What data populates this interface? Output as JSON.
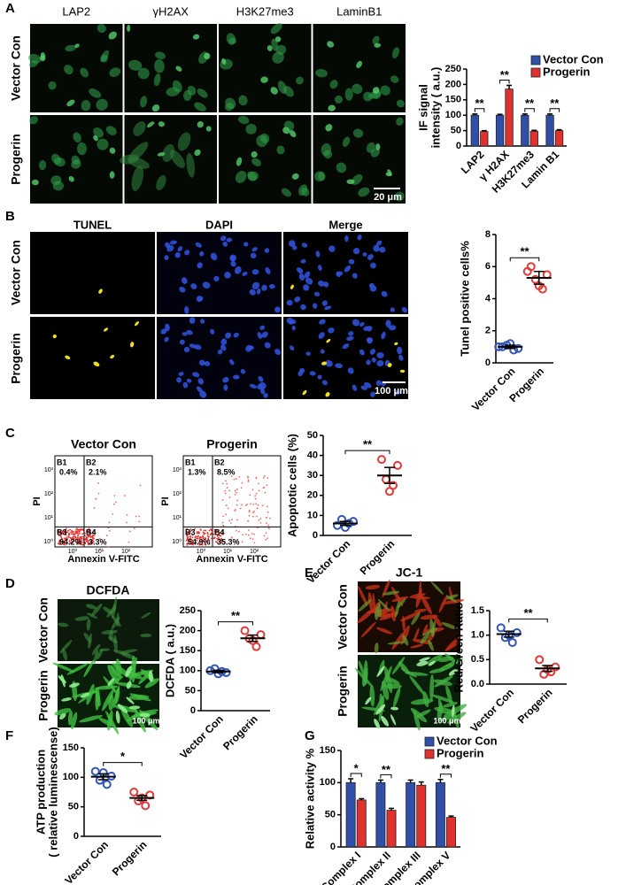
{
  "panels": {
    "A": {
      "letter": "A",
      "columns": [
        "LAP2",
        "γH2AX",
        "H3K27me3",
        "LaminB1"
      ],
      "rows": [
        "Vector Con",
        "Progerin"
      ],
      "scale_bar": "20 μm"
    },
    "B": {
      "letter": "B",
      "columns": [
        "TUNEL",
        "DAPI",
        "Merge"
      ],
      "rows": [
        "Vector Con",
        "Progerin"
      ],
      "scale_bar": "100 μm"
    },
    "C": {
      "letter": "C",
      "plots": [
        {
          "title": "Vector Con",
          "quadrants": [
            "B1",
            "B2",
            "B3",
            "B4"
          ],
          "percents": [
            "0.4%",
            "2.1%",
            "94.2%",
            "3.3%"
          ]
        },
        {
          "title": "Progerin",
          "quadrants": [
            "B1",
            "B2",
            "B3",
            "B4"
          ],
          "percents": [
            "1.3%",
            "8.5%",
            "54.9%",
            "35.3%"
          ]
        }
      ],
      "x_label": "Annexin V-FITC",
      "y_label": "PI",
      "x_ticks": [
        "10⁰",
        "10¹",
        "10²"
      ],
      "y_ticks": [
        "10⁰",
        "10¹",
        "10²",
        "10³"
      ]
    },
    "D": {
      "letter": "D",
      "title": "DCFDA",
      "rows": [
        "Vector Con",
        "Progerin"
      ],
      "scale_bar": "100 μm"
    },
    "E": {
      "letter": "E",
      "title": "JC-1",
      "rows": [
        "Vector Con",
        "Progerin"
      ],
      "scale_bar": "100 μm"
    },
    "F": {
      "letter": "F"
    },
    "G": {
      "letter": "G"
    }
  },
  "chart_data": [
    {
      "type": "bar",
      "ylabel": [
        "IF signal",
        "intensity ( a.u.)"
      ],
      "categories": [
        "LAP2",
        "γ H2AX",
        "H3K27me3",
        "Lamin B1"
      ],
      "series": [
        {
          "name": "Vector Con",
          "color": "#2f4fa8",
          "values": [
            100,
            100,
            100,
            100
          ],
          "errors": [
            4,
            3,
            4,
            4
          ]
        },
        {
          "name": "Progerin",
          "color": "#e0312f",
          "values": [
            47,
            185,
            48,
            50
          ],
          "errors": [
            3,
            12,
            3,
            3
          ]
        }
      ],
      "significance": [
        "**",
        "**",
        "**",
        "**"
      ],
      "ylim": [
        0,
        250
      ],
      "yticks": [
        0,
        50,
        100,
        150,
        200,
        250
      ],
      "legend": "upper right"
    },
    {
      "type": "dotplot",
      "ylabel": "Tunel positive cells%",
      "categories": [
        "Vector Con",
        "Progerin"
      ],
      "colors": [
        "#3355b5",
        "#e0393b"
      ],
      "values": [
        [
          1.0,
          0.9,
          1.1,
          0.8,
          1.2,
          1.0
        ],
        [
          6.0,
          5.5,
          5.2,
          4.6,
          4.8,
          5.7
        ]
      ],
      "means": [
        1.0,
        5.3
      ],
      "errors": [
        0.1,
        0.4
      ],
      "significance": "**",
      "ylim": [
        0,
        8
      ],
      "yticks": [
        0,
        2,
        4,
        6,
        8
      ]
    },
    {
      "type": "dotplot",
      "ylabel": "Apoptotic cells (%)",
      "categories": [
        "Vector Con",
        "Progerin"
      ],
      "colors": [
        "#3355b5",
        "#e0393b"
      ],
      "values": [
        [
          5,
          7,
          8,
          6,
          4
        ],
        [
          38,
          35,
          28,
          25,
          22
        ]
      ],
      "means": [
        6,
        30
      ],
      "errors": [
        1,
        4
      ],
      "significance": "**",
      "ylim": [
        0,
        50
      ],
      "yticks": [
        0,
        10,
        20,
        30,
        40,
        50
      ]
    },
    {
      "type": "dotplot",
      "ylabel": "DCFDA ( a.u.)",
      "categories": [
        "Vector Con",
        "Progerin"
      ],
      "colors": [
        "#3355b5",
        "#e0393b"
      ],
      "values": [
        [
          100,
          95,
          105,
          98,
          92
        ],
        [
          200,
          190,
          180,
          160,
          175
        ]
      ],
      "means": [
        98,
        181
      ],
      "errors": [
        3,
        8
      ],
      "significance": "**",
      "ylim": [
        0,
        250
      ],
      "yticks": [
        0,
        50,
        100,
        150,
        200,
        250
      ]
    },
    {
      "type": "dotplot",
      "ylabel": "Red/Green Ratio",
      "categories": [
        "Vector Con",
        "Progerin"
      ],
      "colors": [
        "#3355b5",
        "#e0393b"
      ],
      "values": [
        [
          1.15,
          1.05,
          0.95,
          0.85,
          1.0
        ],
        [
          0.5,
          0.35,
          0.2,
          0.25,
          0.3
        ]
      ],
      "means": [
        1.02,
        0.32
      ],
      "errors": [
        0.06,
        0.06
      ],
      "significance": "**",
      "ylim": [
        0,
        1.5
      ],
      "yticks": [
        {
          "value": 0,
          "label": "0.0"
        },
        0.5,
        {
          "value": 1,
          "label": "1.0"
        },
        1.5
      ]
    },
    {
      "type": "dotplot",
      "ylabel": [
        "ATP production",
        "( relative luminescense)"
      ],
      "categories": [
        "Vector Con",
        "Progerin"
      ],
      "colors": [
        "#3355b5",
        "#e0393b"
      ],
      "values": [
        [
          110,
          102,
          95,
          88,
          108
        ],
        [
          75,
          70,
          60,
          52,
          65
        ]
      ],
      "means": [
        101,
        65
      ],
      "errors": [
        5,
        4
      ],
      "significance": "*",
      "ylim": [
        0,
        150
      ],
      "yticks": [
        0,
        50,
        100,
        150
      ]
    },
    {
      "type": "bar",
      "ylabel": "Relative activity %",
      "categories": [
        "Complex I",
        "Complex II",
        "Complex III",
        "Complex V"
      ],
      "series": [
        {
          "name": "Vector Con",
          "color": "#2f4fa8",
          "values": [
            100,
            100,
            100,
            100
          ],
          "errors": [
            6,
            4,
            4,
            5
          ]
        },
        {
          "name": "Progerin",
          "color": "#e0312f",
          "values": [
            73,
            57,
            96,
            46
          ],
          "errors": [
            2,
            3,
            5,
            2
          ]
        }
      ],
      "significance": [
        "*",
        "**",
        null,
        "**"
      ],
      "ylim": [
        0,
        150
      ],
      "yticks": [
        0,
        50,
        100,
        150
      ],
      "legend": "upper right"
    }
  ]
}
